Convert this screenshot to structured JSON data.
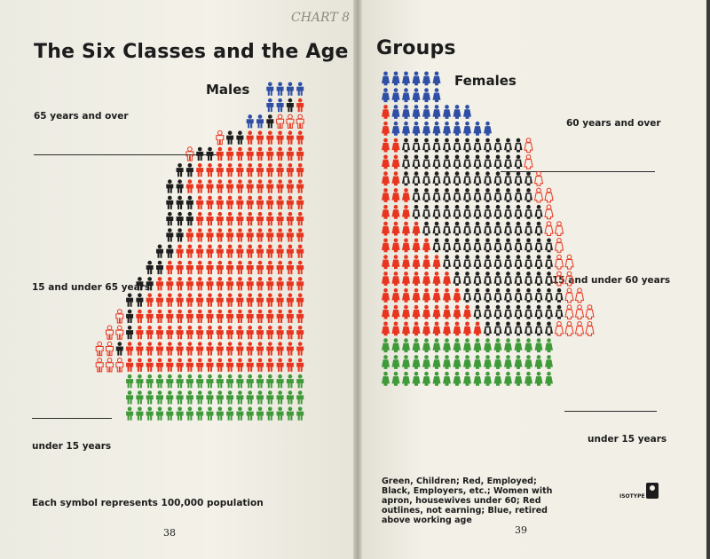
{
  "spread": {
    "title_left": "The Six Classes and the Age",
    "title_right": "Groups",
    "pencil_note": "CHART 8",
    "page_left": "38",
    "page_right": "39",
    "scale_note": "Each symbol represents 100,000 population",
    "legend_text": "Green, Children; Red, Employed; Black, Employers, etc.; Women with apron, housewives under 60; Red outlines, not earning; Blue, retired above working age",
    "logo_text": "ISOTYPE"
  },
  "chart_data": [
    {
      "type": "isotype",
      "title": "Males",
      "unit": "Each symbol represents 100,000 population",
      "categories": [
        "65 years and over",
        "15 and under 65 years",
        "under 15 years"
      ],
      "colors": {
        "Children": "#3f9a3a",
        "Employed": "#e8351f",
        "Employers": "#1e1e1e",
        "Retired": "#2f4fa6",
        "Not earning": "#e8351f"
      },
      "rows": [
        {
          "group": "65 years and over",
          "segments": [
            {
              "cls": "Retired",
              "n": 4
            }
          ]
        },
        {
          "group": "65 years and over",
          "segments": [
            {
              "cls": "Retired",
              "n": 2
            },
            {
              "cls": "Employers",
              "n": 1
            },
            {
              "cls": "Employed",
              "n": 1
            }
          ]
        },
        {
          "group": "65 years and over",
          "segments": [
            {
              "cls": "Retired",
              "n": 2
            },
            {
              "cls": "Employers",
              "n": 1
            },
            {
              "cls": "Not earning",
              "n": 3
            }
          ]
        },
        {
          "group": "15 and under 65 years",
          "segments": [
            {
              "cls": "Not earning",
              "n": 1
            },
            {
              "cls": "Employers",
              "n": 2
            },
            {
              "cls": "Employed",
              "n": 6
            }
          ]
        },
        {
          "group": "15 and under 65 years",
          "segments": [
            {
              "cls": "Not earning",
              "n": 1
            },
            {
              "cls": "Employers",
              "n": 2
            },
            {
              "cls": "Employed",
              "n": 9
            }
          ]
        },
        {
          "group": "15 and under 65 years",
          "segments": [
            {
              "cls": "Employers",
              "n": 2
            },
            {
              "cls": "Employed",
              "n": 11
            }
          ]
        },
        {
          "group": "15 and under 65 years",
          "segments": [
            {
              "cls": "Employers",
              "n": 2
            },
            {
              "cls": "Employed",
              "n": 12
            }
          ]
        },
        {
          "group": "15 and under 65 years",
          "segments": [
            {
              "cls": "Employers",
              "n": 3
            },
            {
              "cls": "Employed",
              "n": 11
            }
          ]
        },
        {
          "group": "15 and under 65 years",
          "segments": [
            {
              "cls": "Employers",
              "n": 3
            },
            {
              "cls": "Employed",
              "n": 11
            }
          ]
        },
        {
          "group": "15 and under 65 years",
          "segments": [
            {
              "cls": "Employers",
              "n": 2
            },
            {
              "cls": "Employed",
              "n": 12
            }
          ]
        },
        {
          "group": "15 and under 65 years",
          "segments": [
            {
              "cls": "Employers",
              "n": 2
            },
            {
              "cls": "Employed",
              "n": 13
            }
          ]
        },
        {
          "group": "15 and under 65 years",
          "segments": [
            {
              "cls": "Employers",
              "n": 2
            },
            {
              "cls": "Employed",
              "n": 14
            }
          ]
        },
        {
          "group": "15 and under 65 years",
          "segments": [
            {
              "cls": "Employers",
              "n": 2
            },
            {
              "cls": "Employed",
              "n": 15
            }
          ]
        },
        {
          "group": "15 and under 65 years",
          "segments": [
            {
              "cls": "Employers",
              "n": 2
            },
            {
              "cls": "Employed",
              "n": 16
            }
          ]
        },
        {
          "group": "15 and under 65 years",
          "segments": [
            {
              "cls": "Not earning",
              "n": 1
            },
            {
              "cls": "Employers",
              "n": 1
            },
            {
              "cls": "Employed",
              "n": 17
            }
          ]
        },
        {
          "group": "15 and under 65 years",
          "segments": [
            {
              "cls": "Not earning",
              "n": 2
            },
            {
              "cls": "Employers",
              "n": 1
            },
            {
              "cls": "Employed",
              "n": 17
            }
          ]
        },
        {
          "group": "15 and under 65 years",
          "segments": [
            {
              "cls": "Not earning",
              "n": 2
            },
            {
              "cls": "Employers",
              "n": 1
            },
            {
              "cls": "Employed",
              "n": 18
            }
          ]
        },
        {
          "group": "15 and under 65 years",
          "segments": [
            {
              "cls": "Not earning",
              "n": 3
            },
            {
              "cls": "Employed",
              "n": 18
            }
          ]
        },
        {
          "group": "under 15 years",
          "segments": [
            {
              "cls": "Children",
              "n": 18
            }
          ]
        },
        {
          "group": "under 15 years",
          "segments": [
            {
              "cls": "Children",
              "n": 18
            }
          ]
        },
        {
          "group": "under 15 years",
          "segments": [
            {
              "cls": "Children",
              "n": 18
            }
          ]
        }
      ]
    },
    {
      "type": "isotype",
      "title": "Females",
      "unit": "Each symbol represents 100,000 population",
      "categories": [
        "60 years and over",
        "15 and under 60 years",
        "under 15 years"
      ],
      "colors": {
        "Children": "#3f9a3a",
        "Employed": "#e8351f",
        "Housewives": "#1e1e1e",
        "Retired": "#2f4fa6",
        "Not earning": "#e8351f"
      },
      "rows": [
        {
          "group": "60 years and over",
          "segments": [
            {
              "cls": "Retired",
              "n": 6
            }
          ]
        },
        {
          "group": "60 years and over",
          "segments": [
            {
              "cls": "Retired",
              "n": 6
            }
          ]
        },
        {
          "group": "60 years and over",
          "segments": [
            {
              "cls": "Employed",
              "n": 1
            },
            {
              "cls": "Retired",
              "n": 8
            }
          ]
        },
        {
          "group": "60 years and over",
          "segments": [
            {
              "cls": "Employed",
              "n": 1
            },
            {
              "cls": "Retired",
              "n": 10
            }
          ]
        },
        {
          "group": "15 and under 60 years",
          "segments": [
            {
              "cls": "Employed",
              "n": 2
            },
            {
              "cls": "Housewives",
              "n": 12
            },
            {
              "cls": "Not earning",
              "n": 1
            }
          ]
        },
        {
          "group": "15 and under 60 years",
          "segments": [
            {
              "cls": "Employed",
              "n": 2
            },
            {
              "cls": "Housewives",
              "n": 12
            },
            {
              "cls": "Not earning",
              "n": 1
            }
          ]
        },
        {
          "group": "15 and under 60 years",
          "segments": [
            {
              "cls": "Employed",
              "n": 2
            },
            {
              "cls": "Housewives",
              "n": 13
            },
            {
              "cls": "Not earning",
              "n": 1
            }
          ]
        },
        {
          "group": "15 and under 60 years",
          "segments": [
            {
              "cls": "Employed",
              "n": 3
            },
            {
              "cls": "Housewives",
              "n": 12
            },
            {
              "cls": "Not earning",
              "n": 2
            }
          ]
        },
        {
          "group": "15 and under 60 years",
          "segments": [
            {
              "cls": "Employed",
              "n": 3
            },
            {
              "cls": "Housewives",
              "n": 13
            },
            {
              "cls": "Not earning",
              "n": 1
            }
          ]
        },
        {
          "group": "15 and under 60 years",
          "segments": [
            {
              "cls": "Employed",
              "n": 4
            },
            {
              "cls": "Housewives",
              "n": 12
            },
            {
              "cls": "Not earning",
              "n": 2
            }
          ]
        },
        {
          "group": "15 and under 60 years",
          "segments": [
            {
              "cls": "Employed",
              "n": 5
            },
            {
              "cls": "Housewives",
              "n": 12
            },
            {
              "cls": "Not earning",
              "n": 1
            }
          ]
        },
        {
          "group": "15 and under 60 years",
          "segments": [
            {
              "cls": "Employed",
              "n": 6
            },
            {
              "cls": "Housewives",
              "n": 11
            },
            {
              "cls": "Not earning",
              "n": 2
            }
          ]
        },
        {
          "group": "15 and under 60 years",
          "segments": [
            {
              "cls": "Employed",
              "n": 7
            },
            {
              "cls": "Housewives",
              "n": 10
            },
            {
              "cls": "Not earning",
              "n": 2
            }
          ]
        },
        {
          "group": "15 and under 60 years",
          "segments": [
            {
              "cls": "Employed",
              "n": 8
            },
            {
              "cls": "Housewives",
              "n": 10
            },
            {
              "cls": "Not earning",
              "n": 2
            }
          ]
        },
        {
          "group": "15 and under 60 years",
          "segments": [
            {
              "cls": "Employed",
              "n": 9
            },
            {
              "cls": "Housewives",
              "n": 9
            },
            {
              "cls": "Not earning",
              "n": 3
            }
          ]
        },
        {
          "group": "15 and under 60 years",
          "segments": [
            {
              "cls": "Employed",
              "n": 10
            },
            {
              "cls": "Housewives",
              "n": 7
            },
            {
              "cls": "Not earning",
              "n": 4
            }
          ]
        },
        {
          "group": "under 15 years",
          "segments": [
            {
              "cls": "Children",
              "n": 17
            }
          ]
        },
        {
          "group": "under 15 years",
          "segments": [
            {
              "cls": "Children",
              "n": 17
            }
          ]
        },
        {
          "group": "under 15 years",
          "segments": [
            {
              "cls": "Children",
              "n": 17
            }
          ]
        }
      ]
    }
  ]
}
